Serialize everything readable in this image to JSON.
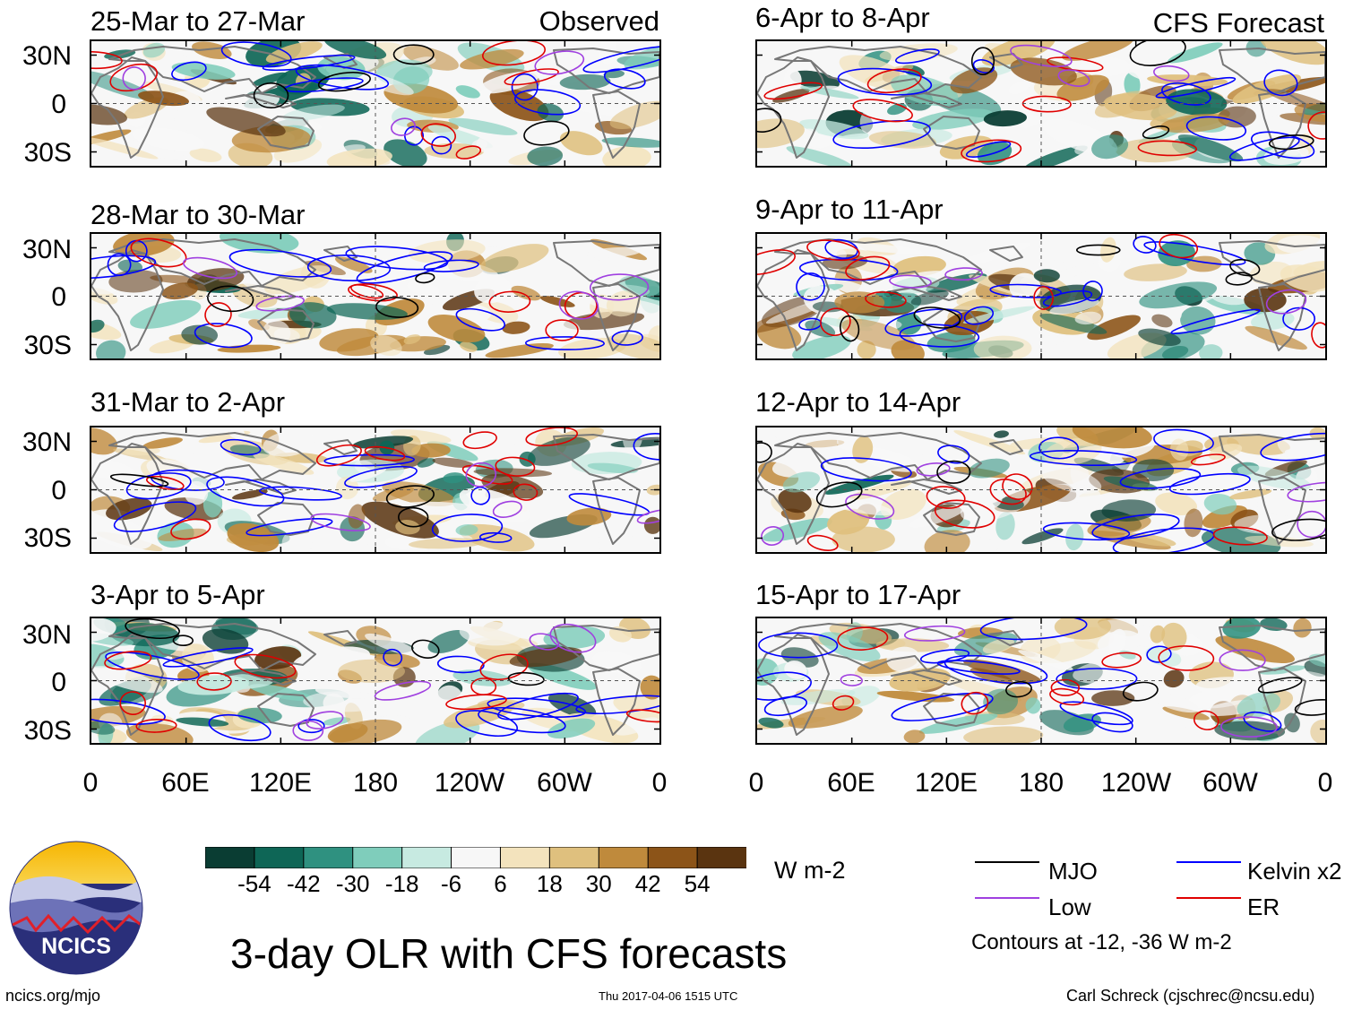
{
  "panels_left": [
    {
      "title": "25-Mar to 27-Mar",
      "tag": "Observed"
    },
    {
      "title": "28-Mar to 30-Mar",
      "tag": ""
    },
    {
      "title": "31-Mar to 2-Apr",
      "tag": ""
    },
    {
      "title": "3-Apr to 5-Apr",
      "tag": ""
    }
  ],
  "panels_right": [
    {
      "title": "6-Apr to 8-Apr",
      "tag": "CFS Forecast"
    },
    {
      "title": "9-Apr to 11-Apr",
      "tag": ""
    },
    {
      "title": "12-Apr to 14-Apr",
      "tag": ""
    },
    {
      "title": "15-Apr to 17-Apr",
      "tag": ""
    }
  ],
  "lat_labels": [
    "30N",
    "0",
    "30S"
  ],
  "lon_labels": [
    "0",
    "60E",
    "120E",
    "180",
    "120W",
    "60W",
    "0"
  ],
  "colorbar": {
    "unit": "W m-2",
    "labels": [
      "-54",
      "-42",
      "-30",
      "-18",
      "-6",
      "6",
      "18",
      "30",
      "42",
      "54"
    ],
    "colors": [
      "#0a3d33",
      "#0e6656",
      "#2f9180",
      "#7fcdbb",
      "#c7eae1",
      "#f7f7f7",
      "#f3e3bd",
      "#dfc07e",
      "#bf8a3c",
      "#8c5418",
      "#5a3410"
    ]
  },
  "legend": {
    "items": [
      {
        "label": "MJO",
        "color": "#000000"
      },
      {
        "label": "Kelvin x2",
        "color": "#0000ff"
      },
      {
        "label": "Low",
        "color": "#a040e0"
      },
      {
        "label": "ER",
        "color": "#e00000"
      }
    ],
    "note": "Contours at -12, -36 W m-2"
  },
  "logo": {
    "text": "NCICS"
  },
  "main_title": "3-day OLR with CFS forecasts",
  "footer": {
    "left": "ncics.org/mjo",
    "center": "Thu 2017-04-06 1515 UTC",
    "right": "Carl Schreck (cjschrec@ncsu.edu)"
  }
}
